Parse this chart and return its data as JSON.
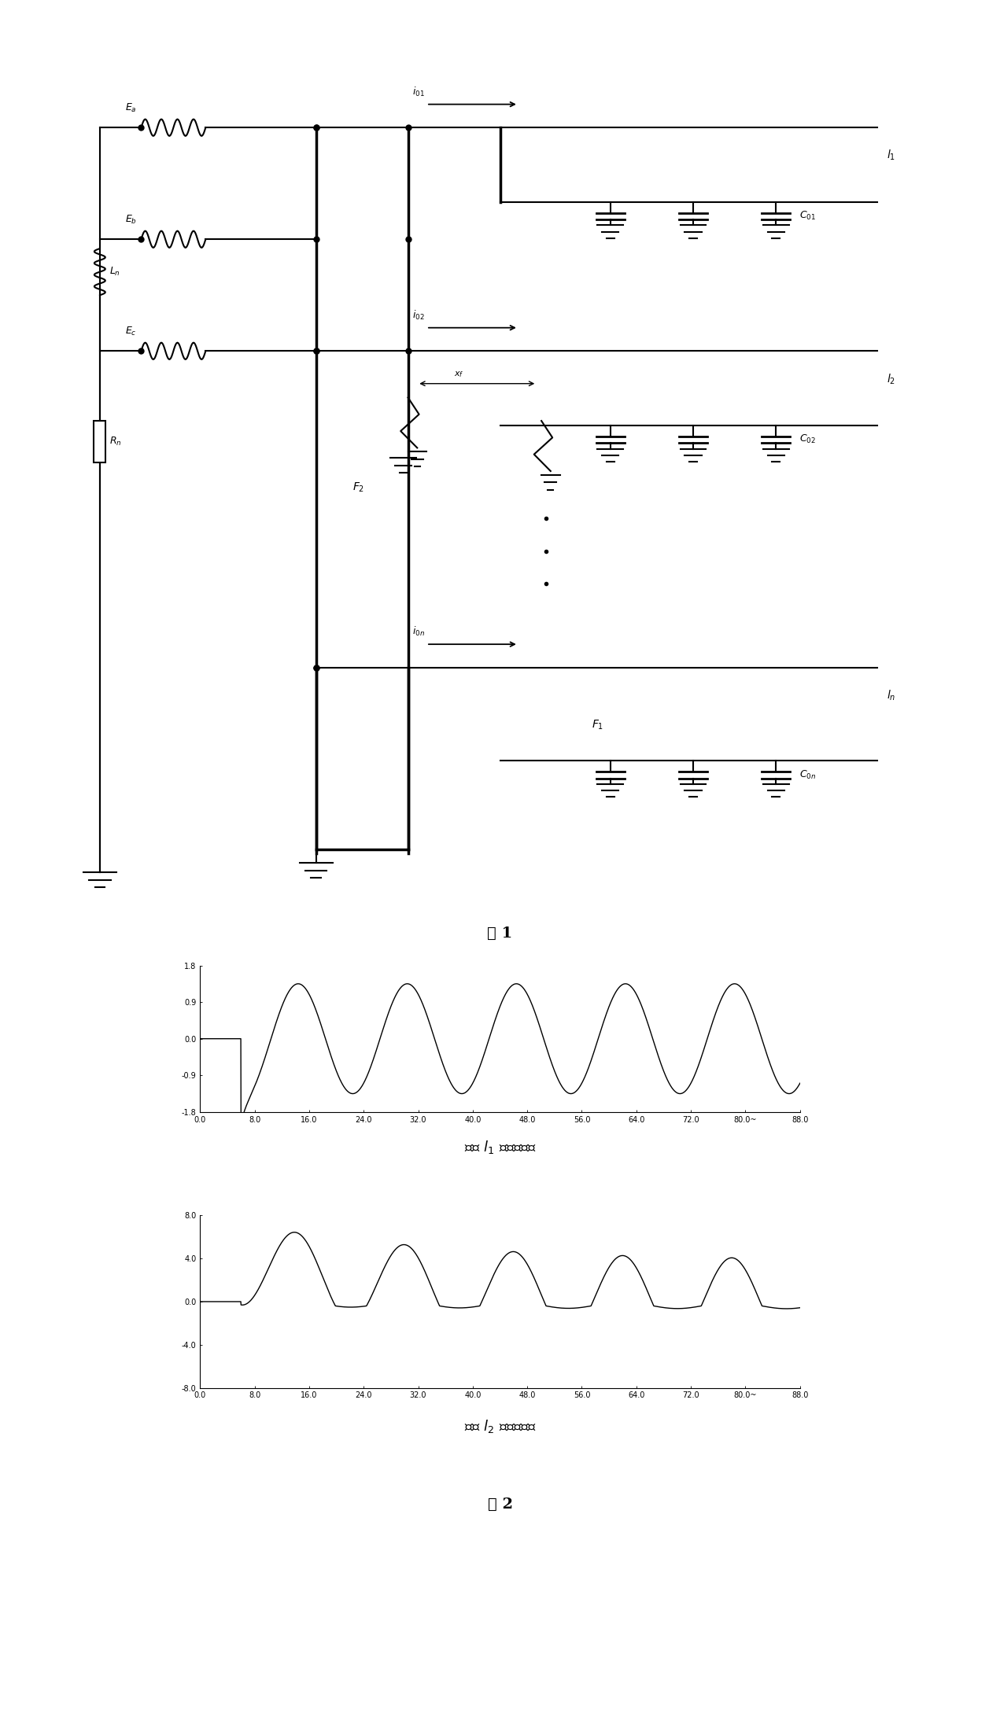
{
  "fig1_caption": "图 1",
  "fig2_caption": "图 2",
  "plot1_title": "线路 $l_1$ 的零序电流",
  "plot2_title": "线路 $l_2$ 的零序电流",
  "plot1_ylim": [
    -1.8,
    1.8
  ],
  "plot2_ylim": [
    -8.0,
    8.0
  ],
  "plot1_yticks": [
    -1.8,
    -0.9,
    0.0,
    0.9,
    1.8
  ],
  "plot2_yticks": [
    -8.0,
    -4.0,
    0.0,
    4.0,
    8.0
  ],
  "xlim": [
    0.0,
    88.0
  ],
  "xticks": [
    0.0,
    8.0,
    16.0,
    24.0,
    32.0,
    40.0,
    48.0,
    56.0,
    64.0,
    72.0,
    80.0,
    88.0
  ],
  "xtick_labels": [
    "0.0",
    "8.0",
    "16.0",
    "24.0",
    "32.0",
    "40.0",
    "48.0",
    "56.0",
    "64.0",
    "72.0",
    "80.0~",
    "88.0"
  ],
  "background": "#ffffff",
  "line_color": "#000000",
  "fault_time": 6.0,
  "omega_period": 16.0
}
